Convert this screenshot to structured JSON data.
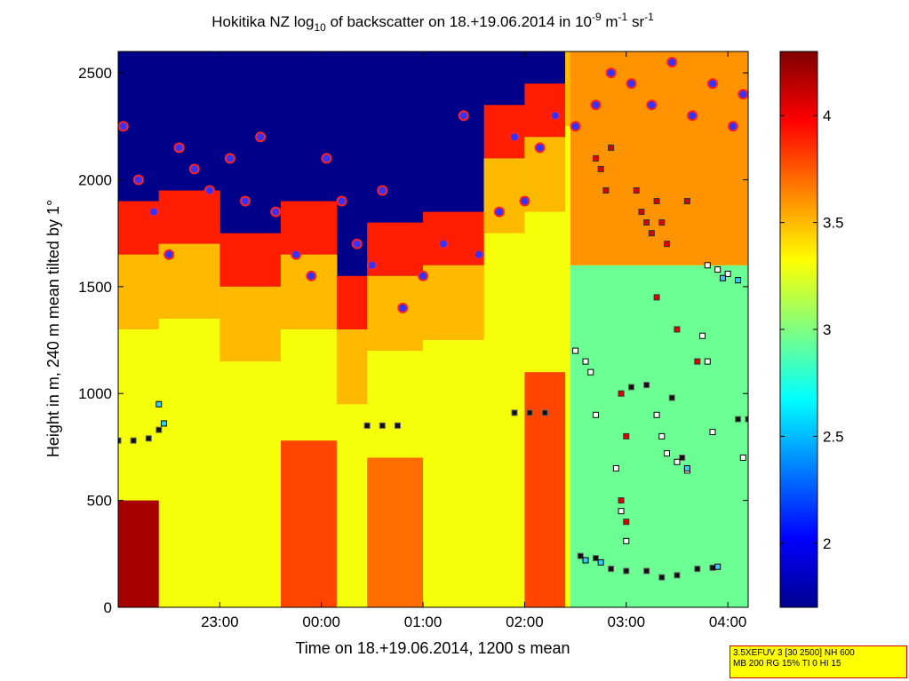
{
  "chart_data": {
    "type": "heatmap",
    "title_parts": [
      "Hokitika NZ log",
      "10",
      " of backscatter on 18.+19.06.2014 in 10",
      "-9",
      " m",
      "-1",
      " sr",
      "-1"
    ],
    "xlabel": "Time on 18.+19.06.2014, 1200 s mean",
    "ylabel": "Height in m, 240 m mean tilted by 1°",
    "x_range_hours": [
      22.0,
      28.2
    ],
    "x_ticks": [
      {
        "label": "23:00",
        "value": 23
      },
      {
        "label": "00:00",
        "value": 24
      },
      {
        "label": "01:00",
        "value": 25
      },
      {
        "label": "02:00",
        "value": 26
      },
      {
        "label": "03:00",
        "value": 27
      },
      {
        "label": "04:00",
        "value": 28
      }
    ],
    "ylim": [
      0,
      2600
    ],
    "y_ticks": [
      "0",
      "500",
      "1000",
      "1500",
      "2000",
      "2500"
    ],
    "colorbar": {
      "range": [
        1.7,
        4.3
      ],
      "ticks": [
        "2",
        "2.5",
        "3",
        "3.5",
        "4"
      ],
      "colormap": "jet"
    },
    "layers": [
      {
        "start": 22.0,
        "end": 22.4,
        "top": 1650,
        "strong_top": 500,
        "strong_level": 4.2
      },
      {
        "start": 22.4,
        "end": 23.0,
        "top": 1700,
        "strong_top": 0,
        "strong_level": 3.3
      },
      {
        "start": 23.0,
        "end": 23.6,
        "top": 1500,
        "strong_top": 0,
        "strong_level": 3.2
      },
      {
        "start": 23.6,
        "end": 24.15,
        "top": 1650,
        "strong_top": 780,
        "strong_level": 3.8
      },
      {
        "start": 24.15,
        "end": 24.45,
        "top": 1300,
        "strong_top": 0,
        "strong_level": 3.2
      },
      {
        "start": 24.45,
        "end": 25.0,
        "top": 1550,
        "strong_top": 700,
        "strong_level": 3.7
      },
      {
        "start": 25.0,
        "end": 25.6,
        "top": 1600,
        "strong_top": 0,
        "strong_level": 3.3
      },
      {
        "start": 25.6,
        "end": 26.0,
        "top": 2100,
        "strong_top": 0,
        "strong_level": 3.4
      },
      {
        "start": 26.0,
        "end": 26.4,
        "top": 2200,
        "strong_top": 1100,
        "strong_level": 3.8
      },
      {
        "start": 26.4,
        "end": 27.3,
        "top": 2600,
        "strong_top": 0,
        "strong_level": 2.9
      },
      {
        "start": 27.3,
        "end": 28.2,
        "top": 2600,
        "strong_top": 0,
        "strong_level": 2.8
      }
    ],
    "cloud_base_heights": [
      {
        "t": 22.0,
        "h": 780
      },
      {
        "t": 22.15,
        "h": 780
      },
      {
        "t": 22.3,
        "h": 790
      },
      {
        "t": 22.4,
        "h": 830
      },
      {
        "t": 24.45,
        "h": 850
      },
      {
        "t": 24.6,
        "h": 850
      },
      {
        "t": 24.75,
        "h": 850
      },
      {
        "t": 25.9,
        "h": 910
      },
      {
        "t": 26.05,
        "h": 910
      },
      {
        "t": 26.2,
        "h": 910
      },
      {
        "t": 26.55,
        "h": 240
      },
      {
        "t": 26.7,
        "h": 230
      },
      {
        "t": 26.85,
        "h": 180
      },
      {
        "t": 27.0,
        "h": 170
      },
      {
        "t": 27.2,
        "h": 170
      },
      {
        "t": 27.35,
        "h": 140
      },
      {
        "t": 27.5,
        "h": 150
      },
      {
        "t": 27.7,
        "h": 180
      },
      {
        "t": 27.85,
        "h": 185
      },
      {
        "t": 27.05,
        "h": 1030
      },
      {
        "t": 27.2,
        "h": 1040
      },
      {
        "t": 27.45,
        "h": 980
      },
      {
        "t": 27.55,
        "h": 700
      },
      {
        "t": 28.1,
        "h": 880
      },
      {
        "t": 28.2,
        "h": 880
      }
    ],
    "points_red": [
      {
        "t": 26.7,
        "h": 2100
      },
      {
        "t": 26.75,
        "h": 2050
      },
      {
        "t": 26.8,
        "h": 1950
      },
      {
        "t": 26.85,
        "h": 2150
      },
      {
        "t": 27.1,
        "h": 1950
      },
      {
        "t": 27.15,
        "h": 1850
      },
      {
        "t": 27.2,
        "h": 1800
      },
      {
        "t": 27.25,
        "h": 1750
      },
      {
        "t": 27.3,
        "h": 1900
      },
      {
        "t": 27.35,
        "h": 1800
      },
      {
        "t": 27.4,
        "h": 1700
      },
      {
        "t": 27.6,
        "h": 1900
      },
      {
        "t": 26.95,
        "h": 1000
      },
      {
        "t": 27.0,
        "h": 800
      },
      {
        "t": 26.95,
        "h": 500
      },
      {
        "t": 27.0,
        "h": 400
      },
      {
        "t": 27.3,
        "h": 1450
      },
      {
        "t": 27.5,
        "h": 1300
      },
      {
        "t": 27.7,
        "h": 1150
      }
    ],
    "points_white": [
      {
        "t": 26.5,
        "h": 1200
      },
      {
        "t": 26.6,
        "h": 1150
      },
      {
        "t": 26.65,
        "h": 1100
      },
      {
        "t": 26.7,
        "h": 900
      },
      {
        "t": 26.9,
        "h": 650
      },
      {
        "t": 26.95,
        "h": 450
      },
      {
        "t": 27.0,
        "h": 310
      },
      {
        "t": 27.3,
        "h": 900
      },
      {
        "t": 27.35,
        "h": 800
      },
      {
        "t": 27.4,
        "h": 720
      },
      {
        "t": 27.5,
        "h": 680
      },
      {
        "t": 27.6,
        "h": 640
      },
      {
        "t": 27.75,
        "h": 1270
      },
      {
        "t": 27.8,
        "h": 1150
      },
      {
        "t": 27.85,
        "h": 820
      },
      {
        "t": 27.8,
        "h": 1600
      },
      {
        "t": 27.9,
        "h": 1580
      },
      {
        "t": 28.0,
        "h": 1560
      },
      {
        "t": 28.15,
        "h": 700
      }
    ],
    "points_cyan": [
      {
        "t": 22.4,
        "h": 950
      },
      {
        "t": 22.45,
        "h": 860
      },
      {
        "t": 26.6,
        "h": 220
      },
      {
        "t": 26.75,
        "h": 210
      },
      {
        "t": 27.9,
        "h": 190
      },
      {
        "t": 27.95,
        "h": 1540
      },
      {
        "t": 28.1,
        "h": 1530
      },
      {
        "t": 27.6,
        "h": 650
      }
    ],
    "cloud_tops": [
      {
        "t": 22.05,
        "h": 2250
      },
      {
        "t": 22.2,
        "h": 2000
      },
      {
        "t": 22.35,
        "h": 1850
      },
      {
        "t": 22.5,
        "h": 1650
      },
      {
        "t": 22.6,
        "h": 2150
      },
      {
        "t": 22.75,
        "h": 2050
      },
      {
        "t": 22.9,
        "h": 1950
      },
      {
        "t": 23.1,
        "h": 2100
      },
      {
        "t": 23.25,
        "h": 1900
      },
      {
        "t": 23.4,
        "h": 2200
      },
      {
        "t": 23.55,
        "h": 1850
      },
      {
        "t": 23.75,
        "h": 1650
      },
      {
        "t": 23.9,
        "h": 1550
      },
      {
        "t": 24.05,
        "h": 2100
      },
      {
        "t": 24.2,
        "h": 1900
      },
      {
        "t": 24.35,
        "h": 1700
      },
      {
        "t": 24.5,
        "h": 1600
      },
      {
        "t": 24.6,
        "h": 1950
      },
      {
        "t": 24.8,
        "h": 1400
      },
      {
        "t": 25.0,
        "h": 1550
      },
      {
        "t": 25.2,
        "h": 1700
      },
      {
        "t": 25.4,
        "h": 2300
      },
      {
        "t": 25.55,
        "h": 1650
      },
      {
        "t": 25.75,
        "h": 1850
      },
      {
        "t": 25.9,
        "h": 2200
      },
      {
        "t": 26.0,
        "h": 1900
      },
      {
        "t": 26.15,
        "h": 2150
      },
      {
        "t": 26.3,
        "h": 2300
      },
      {
        "t": 26.5,
        "h": 2250
      },
      {
        "t": 26.7,
        "h": 2350
      },
      {
        "t": 26.85,
        "h": 2500
      },
      {
        "t": 27.05,
        "h": 2450
      },
      {
        "t": 27.25,
        "h": 2350
      },
      {
        "t": 27.45,
        "h": 2550
      },
      {
        "t": 27.65,
        "h": 2300
      },
      {
        "t": 27.85,
        "h": 2450
      },
      {
        "t": 28.05,
        "h": 2250
      },
      {
        "t": 28.15,
        "h": 2400
      }
    ]
  },
  "info_box": {
    "line1": "3.5XEFUV 3 [30 2500] NH 600",
    "line2": "MB 200 RG 15% TI 0 HI 15"
  }
}
